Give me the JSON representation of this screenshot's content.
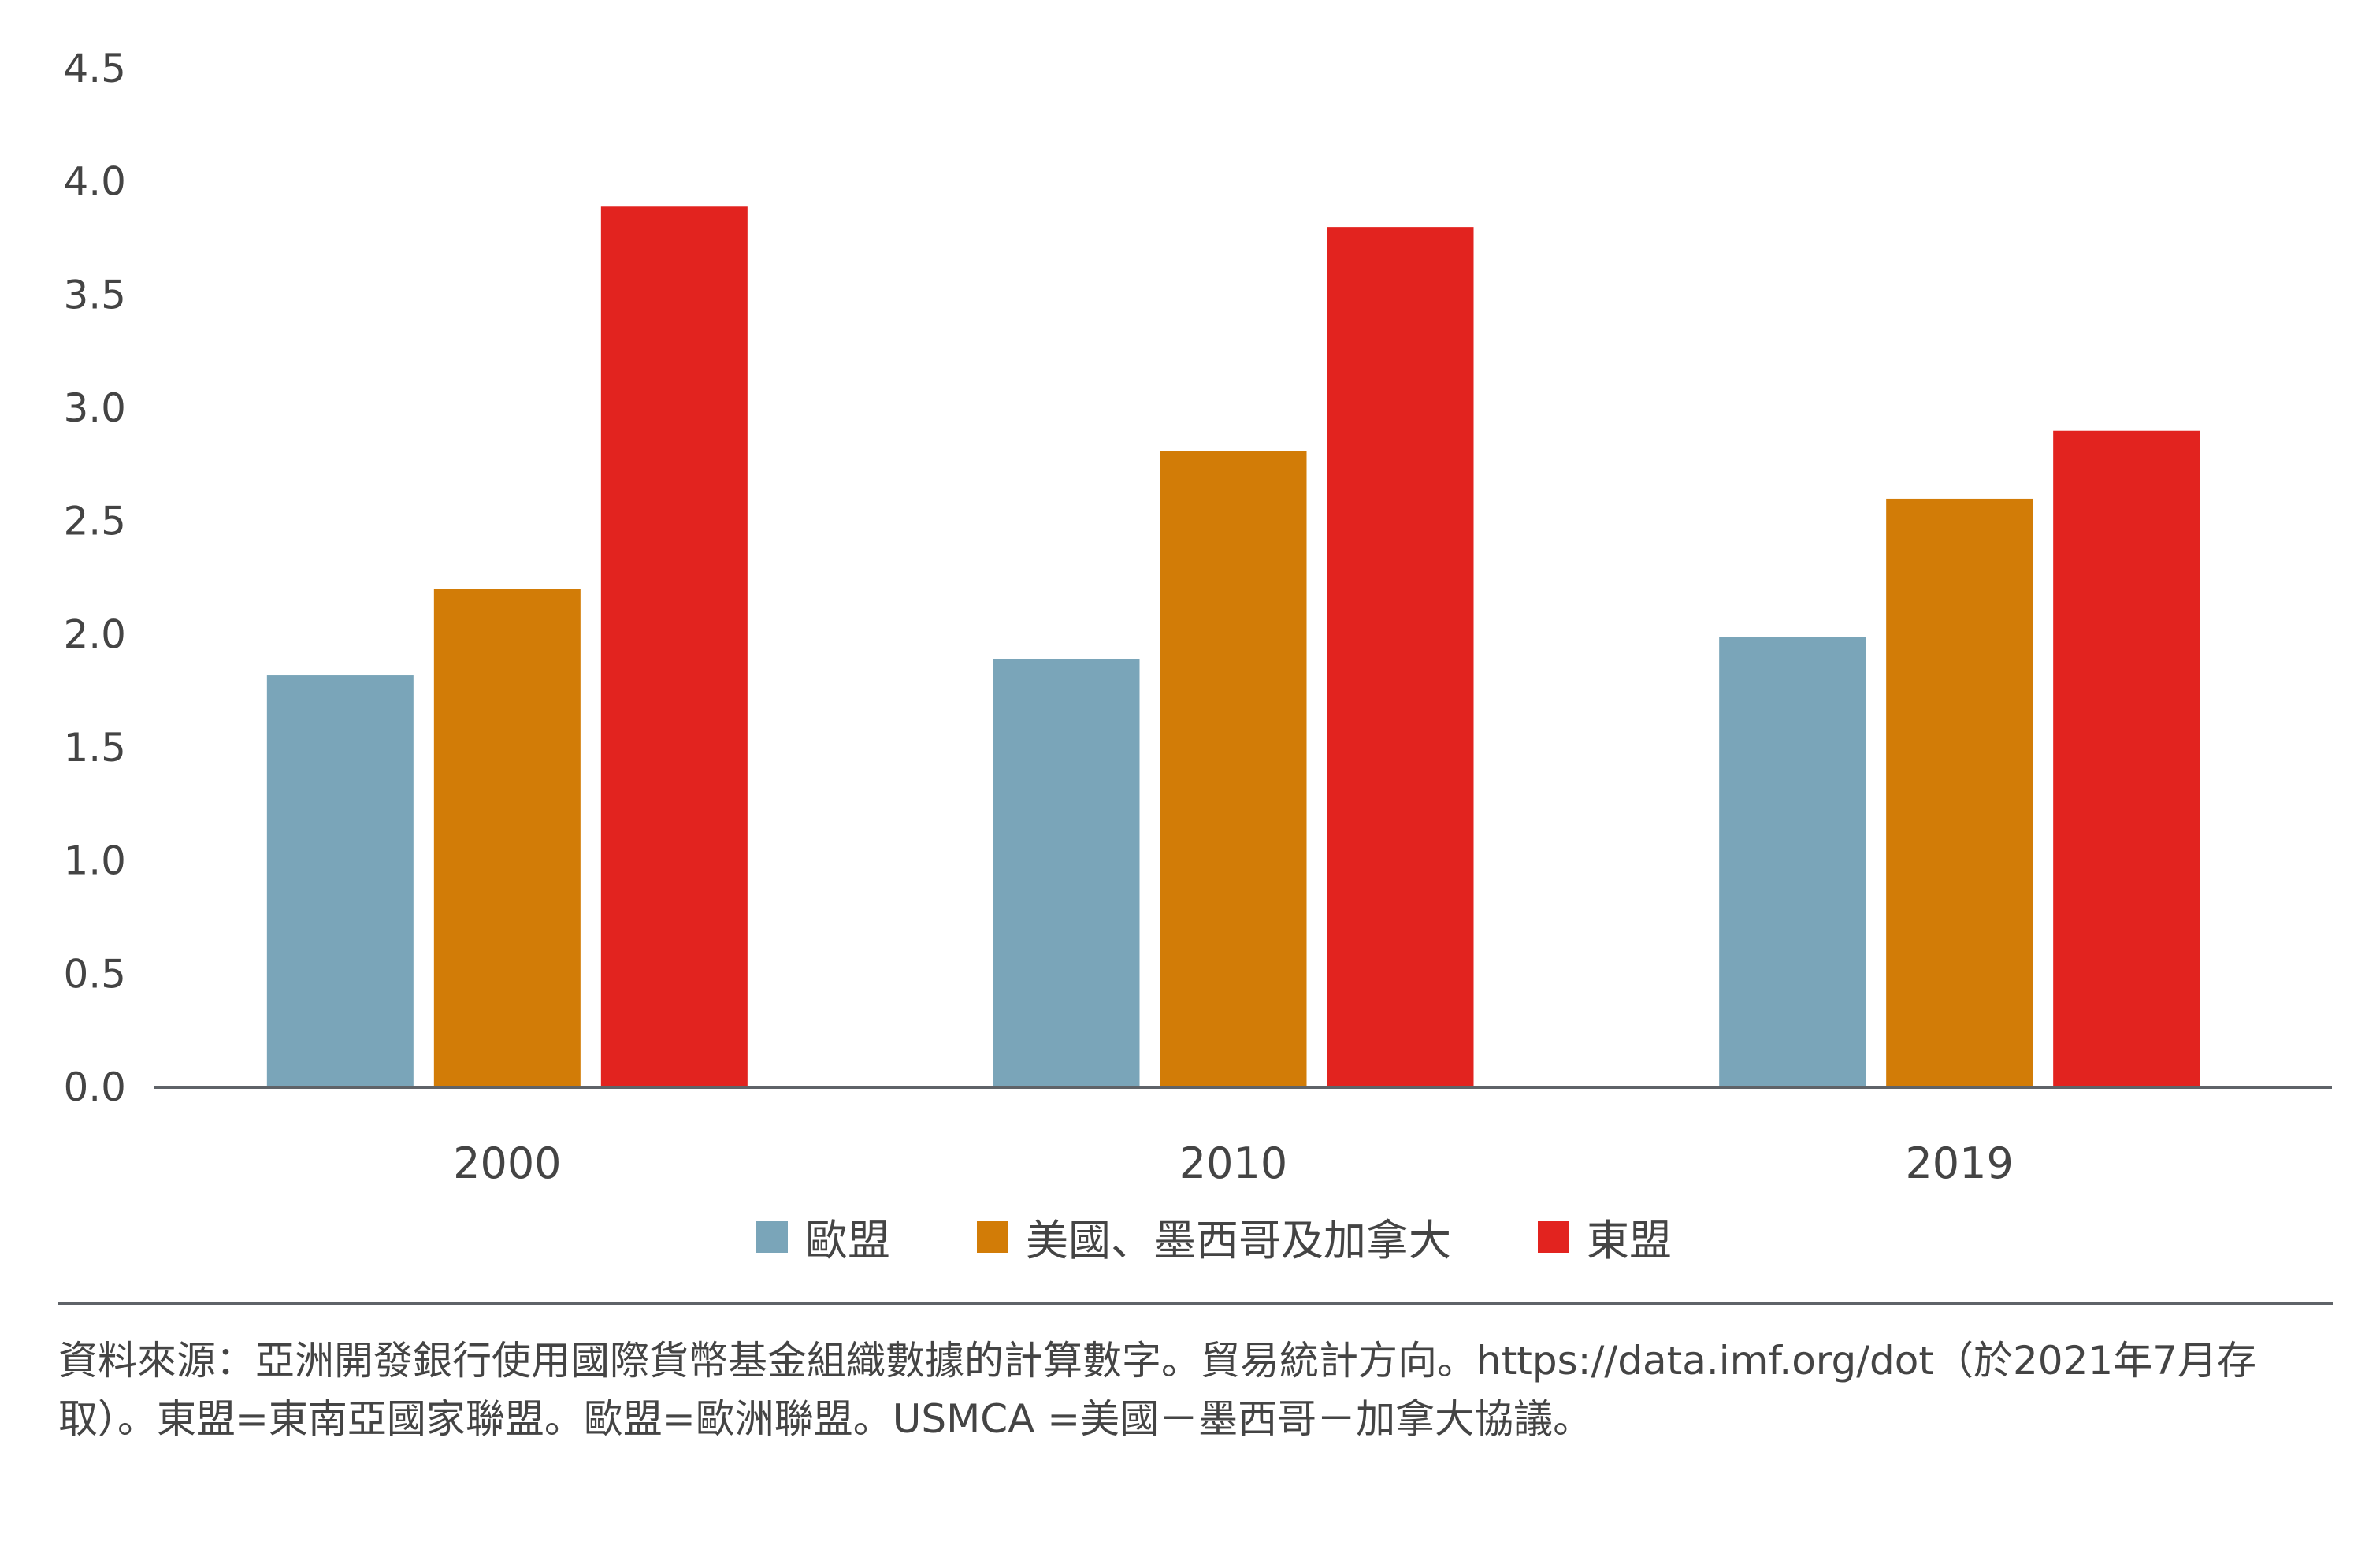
{
  "chart_data": {
    "type": "bar",
    "title": "",
    "xlabel": "",
    "ylabel": "",
    "categories": [
      "2000",
      "2010",
      "2019"
    ],
    "series": [
      {
        "name": "歐盟",
        "color": "#7aa5b9",
        "values": [
          1.82,
          1.89,
          1.99
        ]
      },
      {
        "name": "美國、墨西哥及加拿大",
        "color": "#d27c07",
        "values": [
          2.2,
          2.81,
          2.6
        ]
      },
      {
        "name": "東盟",
        "color": "#e2231f",
        "values": [
          3.89,
          3.8,
          2.9
        ]
      }
    ],
    "ylim": [
      0,
      4.5
    ],
    "yticks": [
      "0.0",
      "0.5",
      "1.0",
      "1.5",
      "2.0",
      "2.5",
      "3.0",
      "3.5",
      "4.0",
      "4.5"
    ],
    "grid": false,
    "legend_position": "bottom"
  },
  "source_text": "資料來源：亞洲開發銀行使用國際貨幣基金組織數據的計算數字。貿易統計方向。https://data.imf.org/dot（於2021年7月存取）。東盟=東南亞國家聯盟。歐盟=歐洲聯盟。USMCA =美國－墨西哥－加拿大協議。"
}
